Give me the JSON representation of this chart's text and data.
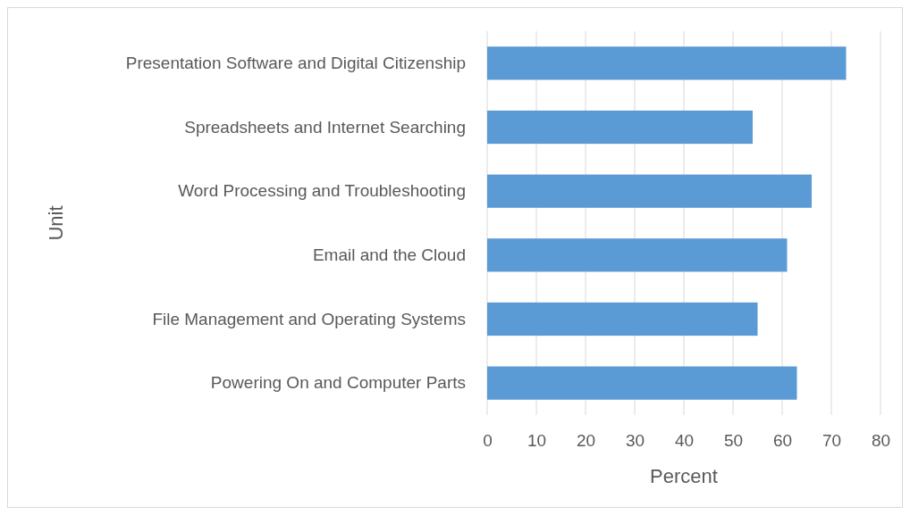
{
  "chart_data": {
    "type": "bar",
    "orientation": "horizontal",
    "xlabel": "Percent",
    "ylabel": "Unit",
    "categories": [
      "Presentation Software and Digital Citizenship",
      "Spreadsheets and Internet Searching",
      "Word Processing and Troubleshooting",
      "Email and the Cloud",
      "File Management and Operating Systems",
      "Powering On and Computer Parts"
    ],
    "values": [
      73,
      54,
      66,
      61,
      55,
      63
    ],
    "color": "#5b9bd5",
    "xlim": [
      0,
      80
    ],
    "xticks": [
      0,
      10,
      20,
      30,
      40,
      50,
      60,
      70,
      80
    ],
    "grid": "x"
  }
}
